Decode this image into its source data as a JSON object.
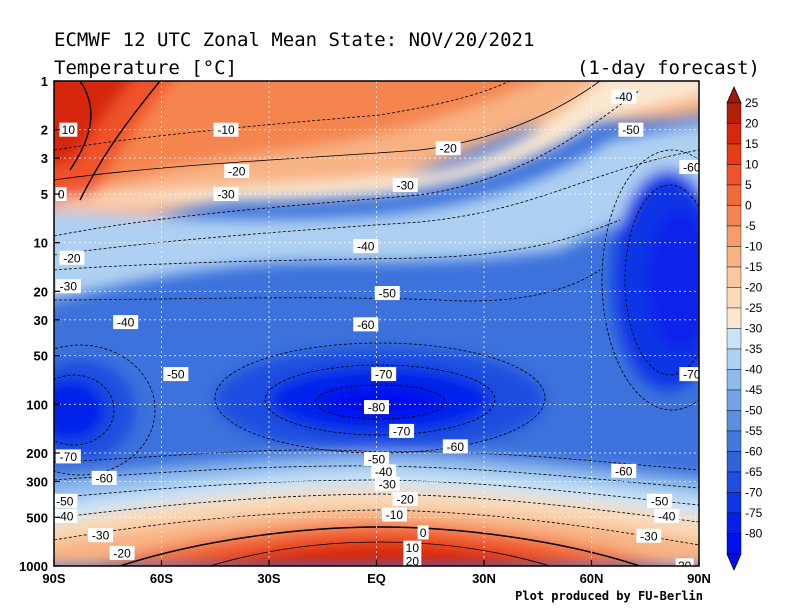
{
  "chart_data": {
    "type": "contour",
    "title": "ECMWF 12 UTC Zonal Mean State: NOV/20/2021",
    "subtitle": "Temperature [°C]",
    "forecast_label": "(1-day forecast)",
    "credit": "Plot produced by FU-Berlin",
    "x_ticks": [
      "90S",
      "60S",
      "30S",
      "EQ",
      "30N",
      "60N",
      "90N"
    ],
    "y_ticks": [
      "1",
      "2",
      "3",
      "5",
      "10",
      "20",
      "30",
      "50",
      "100",
      "200",
      "300",
      "500",
      "1000"
    ],
    "y_tick_values": [
      1,
      2,
      3,
      5,
      10,
      20,
      30,
      50,
      100,
      200,
      300,
      500,
      1000
    ],
    "xlim": [
      -90,
      90
    ],
    "ylim": [
      1,
      1000
    ],
    "yscale": "log",
    "colorbar_levels": [
      "25",
      "20",
      "15",
      "10",
      "5",
      "0",
      "-5",
      "-10",
      "-15",
      "-20",
      "-25",
      "-30",
      "-35",
      "-40",
      "-45",
      "-50",
      "-55",
      "-60",
      "-65",
      "-70",
      "-75",
      "-80"
    ],
    "colorbar_colors": [
      "#b41e08",
      "#d62810",
      "#e83c18",
      "#f0522a",
      "#f26a3c",
      "#f58550",
      "#f79d6a",
      "#f8b384",
      "#f9c89e",
      "#fadab8",
      "#fbe8d0",
      "#c9e4f7",
      "#aed0f2",
      "#8fbaec",
      "#71a3e5",
      "#5a8ee0",
      "#4479dc",
      "#3062d8",
      "#1f4ee0",
      "#1036e6",
      "#0620ea",
      "#0010f0"
    ],
    "contour_labels": [
      {
        "text": "10",
        "lat": -86,
        "p": 2.0
      },
      {
        "text": "-10",
        "lat": -42,
        "p": 2.0
      },
      {
        "text": "-20",
        "lat": -39,
        "p": 3.6
      },
      {
        "text": "-30",
        "lat": -42,
        "p": 5.0
      },
      {
        "text": "0",
        "lat": -88,
        "p": 5.0
      },
      {
        "text": "-20",
        "lat": 20,
        "p": 2.6
      },
      {
        "text": "-30",
        "lat": 8,
        "p": 4.4
      },
      {
        "text": "-40",
        "lat": 69,
        "p": 1.25
      },
      {
        "text": "-50",
        "lat": 71,
        "p": 2.0
      },
      {
        "text": "-60",
        "lat": 88,
        "p": 3.4
      },
      {
        "text": "-40",
        "lat": -3,
        "p": 10.5
      },
      {
        "text": "-50",
        "lat": 3,
        "p": 20.5
      },
      {
        "text": "-60",
        "lat": -3,
        "p": 32
      },
      {
        "text": "-70",
        "lat": 2,
        "p": 65
      },
      {
        "text": "-80",
        "lat": 0,
        "p": 104
      },
      {
        "text": "-70",
        "lat": 7,
        "p": 146
      },
      {
        "text": "-60",
        "lat": 22,
        "p": 182
      },
      {
        "text": "-20",
        "lat": -85,
        "p": 12.4
      },
      {
        "text": "-30",
        "lat": -86,
        "p": 18.6
      },
      {
        "text": "-40",
        "lat": -70,
        "p": 31
      },
      {
        "text": "-50",
        "lat": -56,
        "p": 65
      },
      {
        "text": "-70",
        "lat": 88,
        "p": 65
      },
      {
        "text": "-70",
        "lat": -86,
        "p": 210
      },
      {
        "text": "-60",
        "lat": -76,
        "p": 285
      },
      {
        "text": "-50",
        "lat": 0,
        "p": 218
      },
      {
        "text": "-40",
        "lat": 2,
        "p": 260
      },
      {
        "text": "-30",
        "lat": 3,
        "p": 310
      },
      {
        "text": "-20",
        "lat": 8,
        "p": 385
      },
      {
        "text": "-10",
        "lat": 5,
        "p": 480
      },
      {
        "text": "0",
        "lat": 13,
        "p": 620
      },
      {
        "text": "10",
        "lat": 10,
        "p": 770
      },
      {
        "text": "20",
        "lat": 10,
        "p": 930
      },
      {
        "text": "-50",
        "lat": -87,
        "p": 395
      },
      {
        "text": "-40",
        "lat": -87,
        "p": 490
      },
      {
        "text": "-30",
        "lat": -77,
        "p": 645
      },
      {
        "text": "-20",
        "lat": -71,
        "p": 830
      },
      {
        "text": "-60",
        "lat": 69,
        "p": 258
      },
      {
        "text": "-50",
        "lat": 79,
        "p": 395
      },
      {
        "text": "-40",
        "lat": 81,
        "p": 490
      },
      {
        "text": "-30",
        "lat": 76,
        "p": 650
      },
      {
        "text": "20",
        "lat": 86,
        "p": 990
      }
    ]
  }
}
